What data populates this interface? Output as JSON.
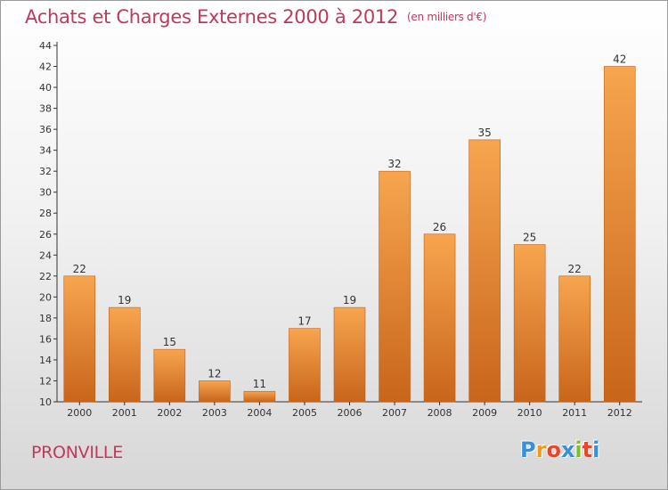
{
  "title": "Achats et Charges Externes 2000 à 2012",
  "unit": "(en milliers d'€)",
  "place": "PRONVILLE",
  "logo": {
    "letters": [
      "P",
      "r",
      "o",
      "x",
      "i",
      "t",
      "i"
    ],
    "colors": [
      "#3a8fd6",
      "#f39a1e",
      "#e8462a",
      "#3a8fd6",
      "#7bbf2a",
      "#e8462a",
      "#3a8fd6"
    ]
  },
  "colors": {
    "title": "#c0395b",
    "bar_top": "#f7a54f",
    "bar_bottom": "#c8651b",
    "axis": "#333333"
  },
  "chart_data": {
    "type": "bar",
    "title": "Achats et Charges Externes 2000 à 2012",
    "subtitle": "(en milliers d'€)",
    "categories": [
      "2000",
      "2001",
      "2002",
      "2003",
      "2004",
      "2005",
      "2006",
      "2007",
      "2008",
      "2009",
      "2010",
      "2011",
      "2012"
    ],
    "values": [
      22,
      19,
      15,
      12,
      11,
      17,
      19,
      32,
      26,
      35,
      25,
      22,
      42
    ],
    "ylim": [
      10,
      44
    ],
    "yticks": [
      10,
      12,
      14,
      16,
      18,
      20,
      22,
      24,
      26,
      28,
      30,
      32,
      34,
      36,
      38,
      40,
      42,
      44
    ],
    "grid": false,
    "data_labels": true
  }
}
